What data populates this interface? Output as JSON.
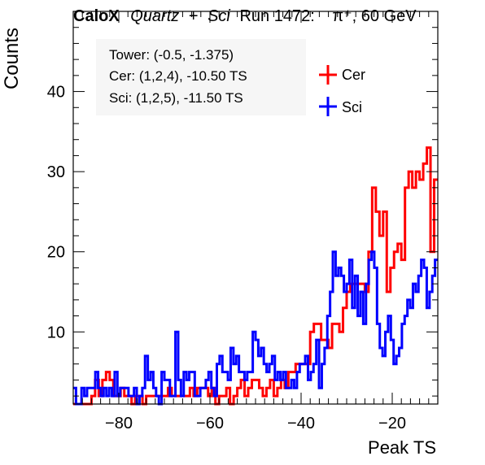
{
  "header": {
    "brand": "CaloX",
    "sample_a": "Quartz",
    "plus": "+",
    "sample_b": "Sci",
    "run": "Run 1472:",
    "particle": "π⁺, 60 GeV"
  },
  "info": {
    "tower": "Tower: (-0.5, -1.375)",
    "cer": "Cer: (1,2,4), -10.50 TS",
    "sci": "Sci: (1,2,5), -11.50 TS"
  },
  "colors": {
    "cer": "#ff0000",
    "sci": "#0000ff"
  },
  "chart_data": {
    "type": "histogram",
    "xlabel": "Peak TS",
    "ylabel": "Counts",
    "xlim": [
      -90,
      -10
    ],
    "ylim": [
      1,
      50
    ],
    "x_ticks": [
      -80,
      -60,
      -40,
      -20
    ],
    "y_ticks": [
      10,
      20,
      30,
      40
    ],
    "bin_width": 1,
    "x_start": -90,
    "legend_position": "top-right",
    "series": [
      {
        "name": "Cer",
        "color": "#ff0000",
        "values": [
          1,
          1,
          1,
          0,
          1,
          2,
          4,
          2,
          4,
          5,
          4,
          2,
          2,
          3,
          2,
          2,
          1,
          2,
          2,
          1,
          2,
          2,
          2,
          2,
          2,
          2,
          3,
          2,
          2,
          2,
          2,
          2,
          3,
          2,
          3,
          3,
          3,
          2,
          3,
          1,
          2,
          2,
          3,
          1,
          2,
          3,
          4,
          2,
          3,
          4,
          4,
          3,
          2,
          3,
          4,
          2,
          3,
          4,
          3,
          5,
          5,
          6,
          6,
          6,
          6,
          10,
          11,
          11,
          9,
          9,
          8,
          11,
          11,
          10,
          13,
          15,
          16,
          16,
          16,
          16,
          15,
          20,
          28,
          25,
          22,
          25,
          15,
          18,
          20,
          21,
          19,
          28,
          30,
          28,
          30,
          29,
          31,
          33,
          20,
          29
        ]
      },
      {
        "name": "Sci",
        "color": "#0000ff",
        "values": [
          3,
          1,
          1,
          3,
          2,
          3,
          3,
          3,
          5,
          3,
          2,
          3,
          2,
          3,
          2,
          5,
          2,
          3,
          3,
          3,
          2,
          2,
          3,
          1,
          2,
          3,
          7,
          4,
          5,
          3,
          2,
          1,
          5,
          4,
          4,
          2,
          2,
          10,
          4,
          2,
          5,
          4,
          5,
          5,
          2,
          2,
          3,
          3,
          4,
          5,
          3,
          2,
          6,
          7,
          5,
          5,
          4,
          8,
          6,
          7,
          5,
          5,
          4,
          5,
          5,
          10,
          9,
          7,
          8,
          6,
          5,
          6,
          7,
          4,
          5,
          4,
          5,
          3,
          3,
          4,
          3,
          5,
          6,
          6,
          7,
          4,
          5,
          6,
          9,
          3,
          6,
          8,
          12,
          15,
          20,
          17,
          18,
          17,
          15,
          16,
          19,
          13,
          17,
          12,
          15,
          11,
          16,
          19,
          20,
          18,
          11,
          8,
          7,
          10,
          12,
          9,
          6,
          7,
          8,
          11,
          12,
          14,
          13,
          16,
          15,
          17,
          19,
          18,
          13,
          15,
          17,
          19
        ]
      }
    ]
  }
}
